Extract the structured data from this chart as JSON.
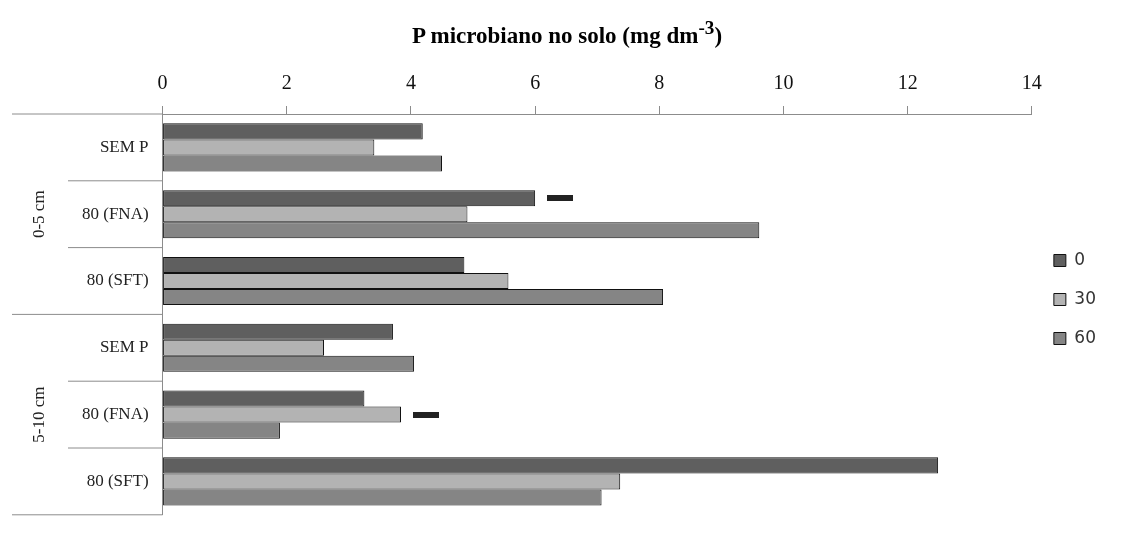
{
  "chart_data": {
    "type": "bar",
    "orientation": "horizontal",
    "title": "P microbiano no solo (mg dm$^{-3}$)",
    "categories": [
      "SEM P",
      "80 (FNA)",
      "80 (SFT)",
      "SEM P",
      "80 (FNA)",
      "80 (SFT)"
    ],
    "series": [
      {
        "name": "0",
        "color": "#5f5f5f",
        "values": [
          4.19,
          6.0,
          4.86,
          3.71,
          3.25,
          12.49
        ]
      },
      {
        "name": "30",
        "color": "#b3b3b3",
        "values": [
          3.41,
          4.91,
          5.57,
          2.6,
          3.84,
          7.37
        ]
      },
      {
        "name": "60",
        "color": "#858585",
        "values": [
          4.5,
          9.61,
          8.06,
          4.05,
          1.89,
          7.07
        ]
      }
    ],
    "xlim": [
      0,
      14
    ],
    "xticks": [
      0,
      2,
      4,
      6,
      8,
      10,
      12,
      14
    ],
    "annotations": [
      "0-5 cm",
      "5-10 cm"
    ],
    "grid": false,
    "legend": "right"
  }
}
